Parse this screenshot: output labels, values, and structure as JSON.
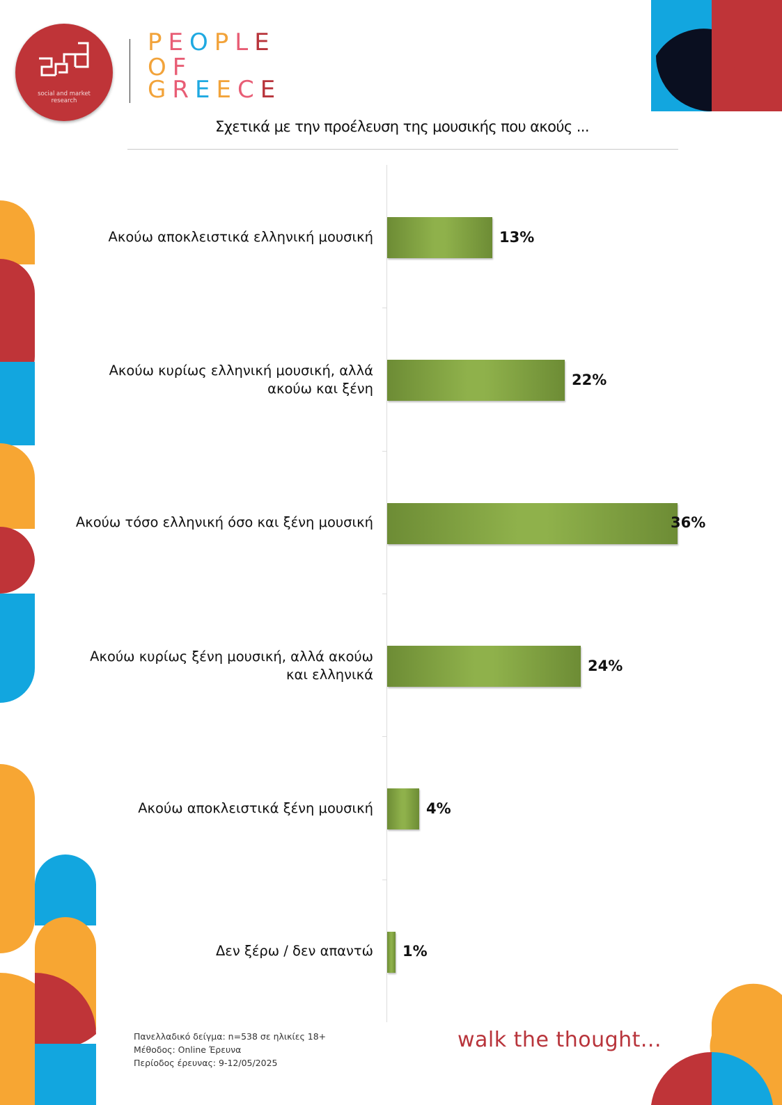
{
  "brand": {
    "logo_tagline_line1": "social and market",
    "logo_tagline_line2": "research",
    "pog_line1": "PEOPLE",
    "pog_line2": "OF",
    "pog_line3": "GREECE",
    "pog_colors": [
      "#f2a33a",
      "#e85d75",
      "#1fa9e1",
      "#f2a33a",
      "#e85d75",
      "#b8343b"
    ],
    "tagline": "walk the thought..."
  },
  "colors": {
    "red": "#bf3438",
    "blue": "#12a6df",
    "orange": "#f7a633",
    "navy": "#0a0f20",
    "bar_green": "#8fb14b"
  },
  "chart_data": {
    "type": "bar",
    "orientation": "horizontal",
    "title": "Σχετικά με την προέλευση της μουσικής που ακούς ...",
    "categories": [
      [
        "Ακούω αποκλειστικά ελληνική μουσική"
      ],
      [
        "Ακούω κυρίως ελληνική μουσική, αλλά",
        "ακούω και ξένη"
      ],
      [
        "Ακούω τόσο ελληνική όσο και ξένη μουσική"
      ],
      [
        "Ακούω κυρίως ξένη μουσική, αλλά ακούω",
        "και ελληνικά"
      ],
      [
        "Ακούω αποκλειστικά ξένη μουσική"
      ],
      [
        "Δεν ξέρω / δεν απαντώ"
      ]
    ],
    "values": [
      13,
      22,
      36,
      24,
      4,
      1
    ],
    "value_labels": [
      "13%",
      "22%",
      "36%",
      "24%",
      "4%",
      "1%"
    ],
    "xlim": [
      0,
      36
    ],
    "grid": false,
    "legend": "none"
  },
  "footnote": {
    "line1": "Πανελλαδικό δείγμα: n=538 σε ηλικίες 18+",
    "line2": "Μέθοδος: Online Έρευνα",
    "line3": "Περίοδος έρευνας: 9-12/05/2025"
  }
}
